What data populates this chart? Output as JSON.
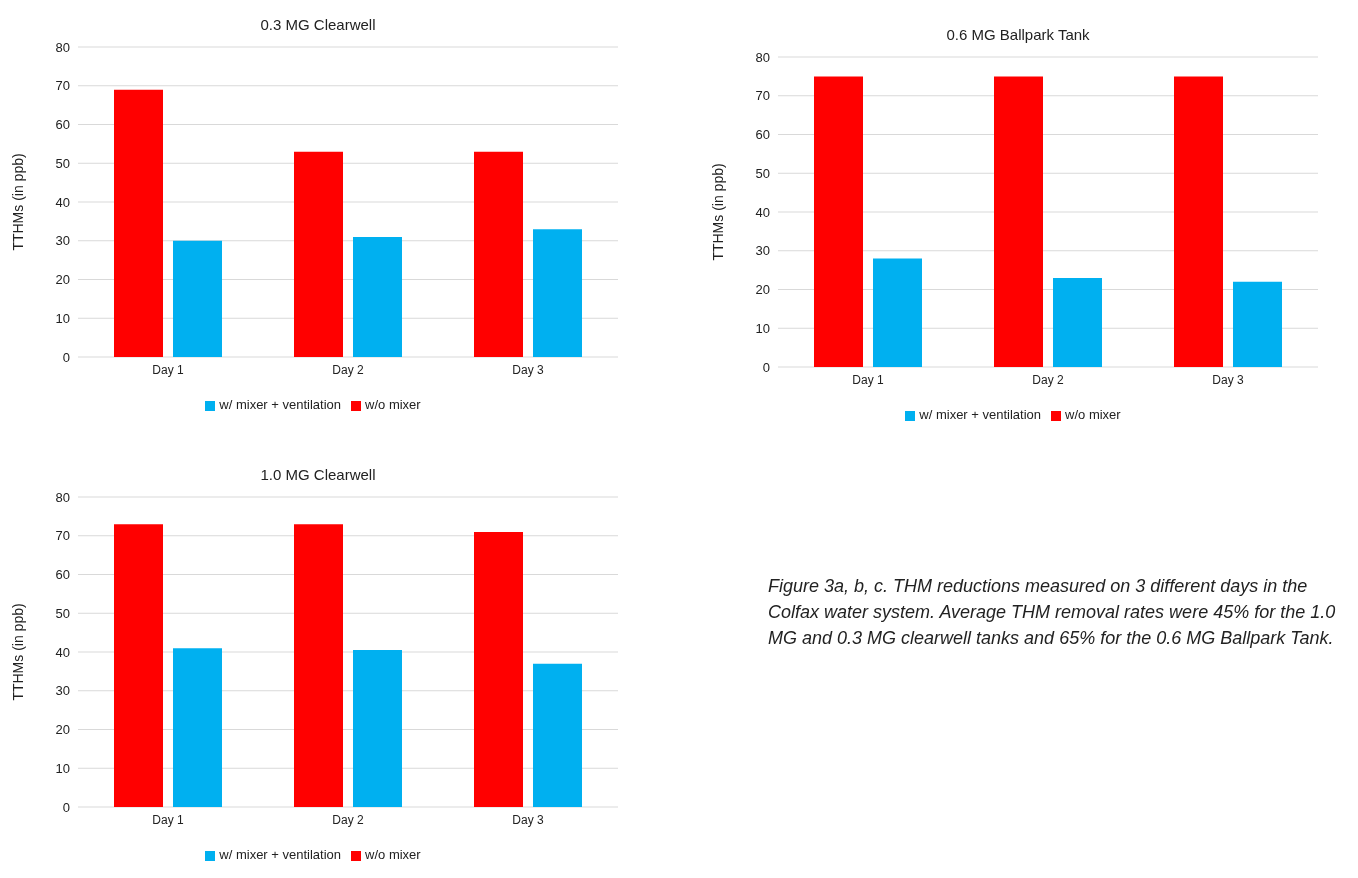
{
  "chart_data": [
    {
      "type": "bar",
      "title": "0.3 MG Clearwell",
      "ylabel": "TTHMs (in ppb)",
      "categories": [
        "Day 1",
        "Day 2",
        "Day 3"
      ],
      "series": [
        {
          "name": "w/o mixer",
          "color": "#ff0000",
          "values": [
            69,
            53,
            53
          ]
        },
        {
          "name": "w/ mixer + ventilation",
          "color": "#00b0f0",
          "values": [
            30,
            31,
            33
          ]
        }
      ],
      "ylim": [
        0,
        80
      ],
      "yticks": [
        0,
        10,
        20,
        30,
        40,
        50,
        60,
        70,
        80
      ],
      "grid": "y",
      "legend": "bottom"
    },
    {
      "type": "bar",
      "title": "0.6 MG Ballpark Tank",
      "ylabel": "TTHMs (in ppb)",
      "categories": [
        "Day 1",
        "Day 2",
        "Day 3"
      ],
      "series": [
        {
          "name": "w/o mixer",
          "color": "#ff0000",
          "values": [
            75,
            75,
            75
          ]
        },
        {
          "name": "w/ mixer + ventilation",
          "color": "#00b0f0",
          "values": [
            28,
            23,
            22
          ]
        }
      ],
      "ylim": [
        0,
        80
      ],
      "yticks": [
        0,
        10,
        20,
        30,
        40,
        50,
        60,
        70,
        80
      ],
      "grid": "y",
      "legend": "bottom"
    },
    {
      "type": "bar",
      "title": "1.0 MG Clearwell",
      "ylabel": "TTHMs (in ppb)",
      "categories": [
        "Day 1",
        "Day 2",
        "Day 3"
      ],
      "series": [
        {
          "name": "w/o mixer",
          "color": "#ff0000",
          "values": [
            73,
            73,
            71
          ]
        },
        {
          "name": "w/ mixer + ventilation",
          "color": "#00b0f0",
          "values": [
            41,
            40.5,
            37
          ]
        }
      ],
      "ylim": [
        0,
        80
      ],
      "yticks": [
        0,
        10,
        20,
        30,
        40,
        50,
        60,
        70,
        80
      ],
      "grid": "y",
      "legend": "bottom"
    },
    {
      "type": "other",
      "annotations": [
        "Figure 3a, b, c. THM reductions measured on 3 different days in the Colfax water system. Average THM removal rates were 45% for the 1.0 MG and 0.3 MG clearwell tanks and 65% for the 0.6 MG Ballpark Tank."
      ]
    }
  ]
}
